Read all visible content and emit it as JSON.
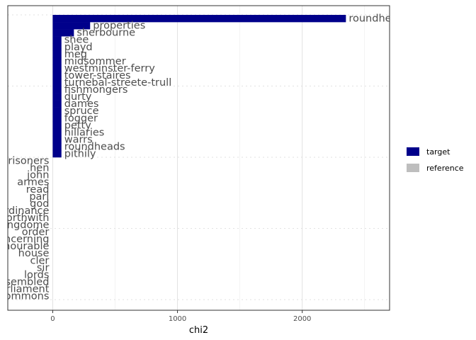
{
  "chart_data": {
    "type": "bar",
    "orientation": "horizontal",
    "xlabel": "chi2",
    "ylabel": "",
    "xlim": [
      -360,
      2700
    ],
    "x_ticks": [
      0,
      1000,
      2000
    ],
    "grid": true,
    "legend_position": "right",
    "legend": [
      {
        "key": "target",
        "label": "target",
        "color": "#00008b"
      },
      {
        "key": "reference",
        "label": "reference",
        "color": "#bebebe"
      }
    ],
    "bars": [
      {
        "label": "roundhe",
        "value": 2350,
        "group": "target"
      },
      {
        "label": "properties",
        "value": 300,
        "group": "target"
      },
      {
        "label": "sherbourne",
        "value": 170,
        "group": "target"
      },
      {
        "label": "shee",
        "value": 70,
        "group": "target"
      },
      {
        "label": "playd",
        "value": 70,
        "group": "target"
      },
      {
        "label": "meg",
        "value": 70,
        "group": "target"
      },
      {
        "label": "midsommer",
        "value": 70,
        "group": "target"
      },
      {
        "label": "westminster-ferry",
        "value": 70,
        "group": "target"
      },
      {
        "label": "tower-staires",
        "value": 70,
        "group": "target"
      },
      {
        "label": "turnebal-streete-trull",
        "value": 70,
        "group": "target"
      },
      {
        "label": "fishmongers",
        "value": 70,
        "group": "target"
      },
      {
        "label": "durty",
        "value": 70,
        "group": "target"
      },
      {
        "label": "dames",
        "value": 70,
        "group": "target"
      },
      {
        "label": "spruce",
        "value": 70,
        "group": "target"
      },
      {
        "label": "fogger",
        "value": 70,
        "group": "target"
      },
      {
        "label": "petty",
        "value": 70,
        "group": "target"
      },
      {
        "label": "hillaries",
        "value": 70,
        "group": "target"
      },
      {
        "label": "warrs",
        "value": 70,
        "group": "target"
      },
      {
        "label": "roundheads",
        "value": 70,
        "group": "target"
      },
      {
        "label": "pithily",
        "value": 70,
        "group": "target"
      },
      {
        "label": "prisoners",
        "value": 0,
        "group": "reference"
      },
      {
        "label": "hen",
        "value": 0,
        "group": "reference"
      },
      {
        "label": "john",
        "value": 0,
        "group": "reference"
      },
      {
        "label": "armes",
        "value": 0,
        "group": "reference"
      },
      {
        "label": "read",
        "value": 0,
        "group": "reference"
      },
      {
        "label": "parl",
        "value": 0,
        "group": "reference"
      },
      {
        "label": "god",
        "value": 0,
        "group": "reference"
      },
      {
        "label": "ordinance",
        "value": 0,
        "group": "reference"
      },
      {
        "label": "forthwith",
        "value": 0,
        "group": "reference"
      },
      {
        "label": "kingdome",
        "value": 0,
        "group": "reference"
      },
      {
        "label": "order",
        "value": 0,
        "group": "reference"
      },
      {
        "label": "concerning",
        "value": 0,
        "group": "reference"
      },
      {
        "label": "honourable",
        "value": 0,
        "group": "reference"
      },
      {
        "label": "house",
        "value": 0,
        "group": "reference"
      },
      {
        "label": "cler",
        "value": 0,
        "group": "reference"
      },
      {
        "label": "sir",
        "value": 0,
        "group": "reference"
      },
      {
        "label": "lords",
        "value": 0,
        "group": "reference"
      },
      {
        "label": "assembled",
        "value": 0,
        "group": "reference"
      },
      {
        "label": "parliament",
        "value": 0,
        "group": "reference"
      },
      {
        "label": "commons",
        "value": 0,
        "group": "reference"
      }
    ]
  }
}
